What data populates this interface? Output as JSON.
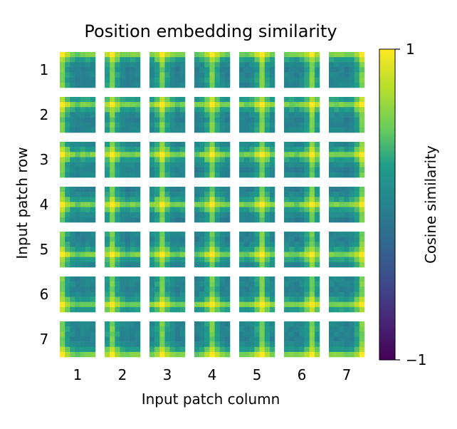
{
  "chart_data": {
    "type": "heatmap",
    "title": "Position embedding similarity",
    "xlabel": "Input patch column",
    "ylabel": "Input patch row",
    "x_ticks": [
      "1",
      "2",
      "3",
      "4",
      "5",
      "6",
      "7"
    ],
    "y_ticks": [
      "1",
      "2",
      "3",
      "4",
      "5",
      "6",
      "7"
    ],
    "grid_rows": 7,
    "grid_cols": 7,
    "colorbar": {
      "label": "Cosine similarity",
      "min": -1,
      "max": 1,
      "tick_labels": [
        "1",
        "−1"
      ],
      "colormap": "viridis"
    },
    "colors": {
      "viridis": [
        "#440154",
        "#482777",
        "#3f4a8a",
        "#31678e",
        "#26838f",
        "#1f9d8a",
        "#6cce5a",
        "#b6de2b",
        "#fee825"
      ]
    }
  }
}
